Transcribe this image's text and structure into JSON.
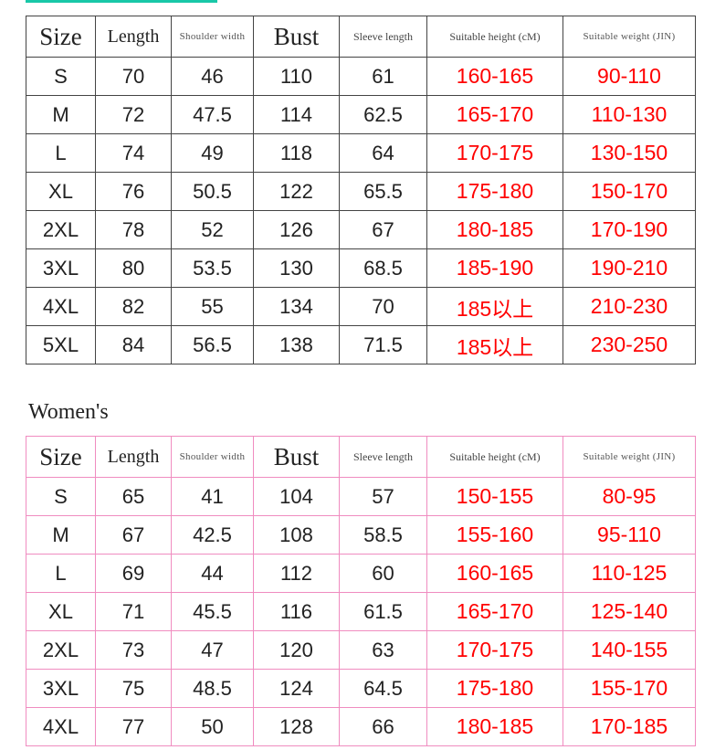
{
  "headers": [
    "Size",
    "Length",
    "Shoulder width",
    "Bust",
    "Sleeve length",
    "Suitable height (cM)",
    "Suitable weight (JIN)"
  ],
  "colors": {
    "accent_bar": "#19c8a8",
    "men_border": "#444444",
    "women_border": "#f08cc0",
    "range_text": "#ff0000"
  },
  "men": {
    "rows": [
      [
        "S",
        "70",
        "46",
        "110",
        "61",
        "160-165",
        "90-110"
      ],
      [
        "M",
        "72",
        "47.5",
        "114",
        "62.5",
        "165-170",
        "110-130"
      ],
      [
        "L",
        "74",
        "49",
        "118",
        "64",
        "170-175",
        "130-150"
      ],
      [
        "XL",
        "76",
        "50.5",
        "122",
        "65.5",
        "175-180",
        "150-170"
      ],
      [
        "2XL",
        "78",
        "52",
        "126",
        "67",
        "180-185",
        "170-190"
      ],
      [
        "3XL",
        "80",
        "53.5",
        "130",
        "68.5",
        "185-190",
        "190-210"
      ],
      [
        "4XL",
        "82",
        "55",
        "134",
        "70",
        "185以上",
        "210-230"
      ],
      [
        "5XL",
        "84",
        "56.5",
        "138",
        "71.5",
        "185以上",
        "230-250"
      ]
    ]
  },
  "women": {
    "title": "Women's",
    "rows": [
      [
        "S",
        "65",
        "41",
        "104",
        "57",
        "150-155",
        "80-95"
      ],
      [
        "M",
        "67",
        "42.5",
        "108",
        "58.5",
        "155-160",
        "95-110"
      ],
      [
        "L",
        "69",
        "44",
        "112",
        "60",
        "160-165",
        "110-125"
      ],
      [
        "XL",
        "71",
        "45.5",
        "116",
        "61.5",
        "165-170",
        "125-140"
      ],
      [
        "2XL",
        "73",
        "47",
        "120",
        "63",
        "170-175",
        "140-155"
      ],
      [
        "3XL",
        "75",
        "48.5",
        "124",
        "64.5",
        "175-180",
        "155-170"
      ],
      [
        "4XL",
        "77",
        "50",
        "128",
        "66",
        "180-185",
        "170-185"
      ]
    ]
  }
}
